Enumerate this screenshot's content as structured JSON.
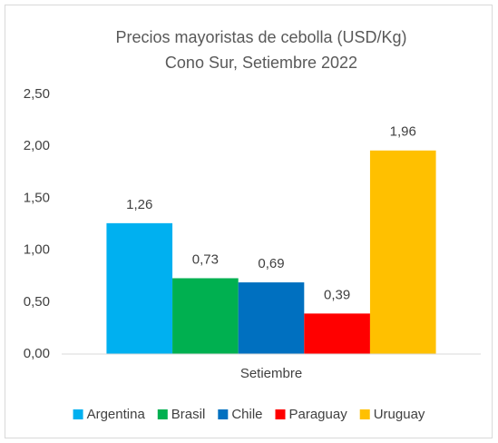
{
  "chart_data": {
    "type": "bar",
    "title": "Precios mayoristas de cebolla (USD/Kg)",
    "subtitle": "Cono Sur, Setiembre 2022",
    "categories": [
      "Setiembre"
    ],
    "series": [
      {
        "name": "Argentina",
        "color": "#00b0f0",
        "values": [
          1.26
        ],
        "value_labels": [
          "1,26"
        ]
      },
      {
        "name": "Brasil",
        "color": "#00b050",
        "values": [
          0.73
        ],
        "value_labels": [
          "0,73"
        ]
      },
      {
        "name": "Chile",
        "color": "#0070c0",
        "values": [
          0.69
        ],
        "value_labels": [
          "0,69"
        ]
      },
      {
        "name": "Paraguay",
        "color": "#ff0000",
        "values": [
          0.39
        ],
        "value_labels": [
          "0,39"
        ]
      },
      {
        "name": "Uruguay",
        "color": "#ffc000",
        "values": [
          1.96
        ],
        "value_labels": [
          "1,96"
        ]
      }
    ],
    "ylim": [
      0,
      2.5
    ],
    "yticks": [
      {
        "value": 0,
        "label": "0,00"
      },
      {
        "value": 0.5,
        "label": "0,50"
      },
      {
        "value": 1,
        "label": "1,00"
      },
      {
        "value": 1.5,
        "label": "1,50"
      },
      {
        "value": 2,
        "label": "2,00"
      },
      {
        "value": 2.5,
        "label": "2,50"
      }
    ],
    "grid": false,
    "legend": "bottom"
  }
}
